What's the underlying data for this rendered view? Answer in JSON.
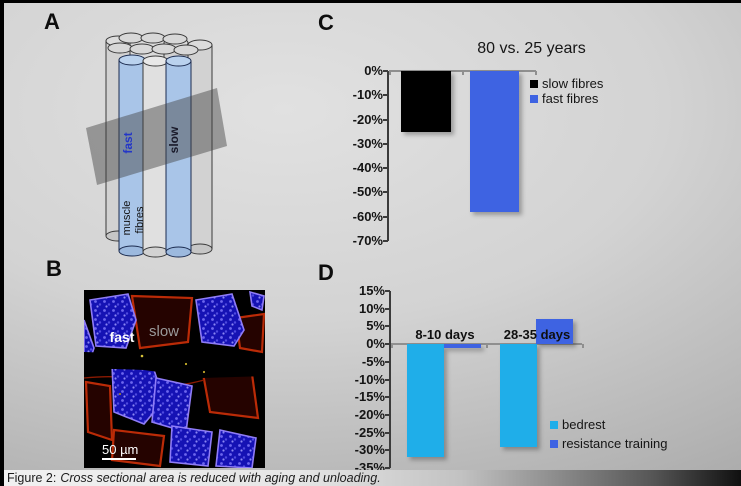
{
  "panels": {
    "a": "A",
    "b": "B",
    "c": "C",
    "d": "D"
  },
  "diagram": {
    "fast_label": "fast",
    "slow_label": "slow",
    "bundle_line1": "muscle",
    "bundle_line2": "fibres"
  },
  "micrograph": {
    "fast_label": "fast",
    "slow_label": "slow",
    "scale_bar": "50 µm"
  },
  "caption": {
    "prefix": "Figure 2:",
    "text": "Cross sectional area is reduced with aging and unloading."
  },
  "chart_data": [
    {
      "id": "C",
      "type": "bar",
      "title": "80 vs. 25 years",
      "categories": [
        "slow fibres",
        "fast fibres"
      ],
      "values": [
        -25,
        -58
      ],
      "colors": [
        "#000000",
        "#3e63e2"
      ],
      "xlabel": "",
      "ylabel": "",
      "ylim": [
        -70,
        0
      ],
      "yticks": [
        "0%",
        "-10%",
        "-20%",
        "-30%",
        "-40%",
        "-50%",
        "-60%",
        "-70%"
      ],
      "grid": false,
      "legend": [
        {
          "label": "slow fibres",
          "color": "#000000"
        },
        {
          "label": "fast fibres",
          "color": "#3e63e2"
        }
      ],
      "legend_position": "right"
    },
    {
      "id": "D",
      "type": "bar",
      "title": "",
      "categories": [
        "8-10 days",
        "28-35 days"
      ],
      "series": [
        {
          "name": "bedrest",
          "color": "#1faee9",
          "values": [
            -32,
            -29
          ]
        },
        {
          "name": "resistance training",
          "color": "#3e63e2",
          "values": [
            -1,
            7
          ]
        }
      ],
      "xlabel": "",
      "ylabel": "",
      "ylim": [
        -35,
        15
      ],
      "yticks": [
        "15%",
        "10%",
        "5%",
        "0%",
        "-5%",
        "-10%",
        "-15%",
        "-20%",
        "-25%",
        "-30%",
        "-35%"
      ],
      "grid": false,
      "legend_position": "bottom-right"
    }
  ]
}
